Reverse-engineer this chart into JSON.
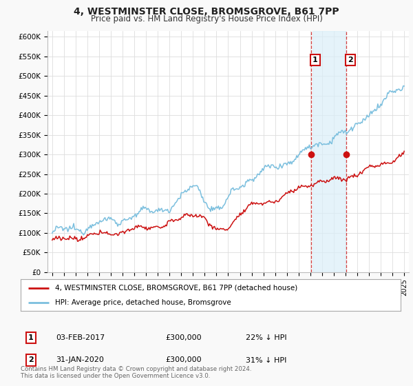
{
  "title": "4, WESTMINSTER CLOSE, BROMSGROVE, B61 7PP",
  "subtitle": "Price paid vs. HM Land Registry's House Price Index (HPI)",
  "ylabel_ticks": [
    "£0",
    "£50K",
    "£100K",
    "£150K",
    "£200K",
    "£250K",
    "£300K",
    "£350K",
    "£400K",
    "£450K",
    "£500K",
    "£550K",
    "£600K"
  ],
  "ytick_values": [
    0,
    50000,
    100000,
    150000,
    200000,
    250000,
    300000,
    350000,
    400000,
    450000,
    500000,
    550000,
    600000
  ],
  "ylim": [
    0,
    615000
  ],
  "xlim_start": 1994.6,
  "xlim_end": 2025.4,
  "hpi_color": "#7bbfde",
  "price_color": "#cc1111",
  "shade_color": "#daeef8",
  "transaction1_x": 2017.09,
  "transaction1_y": 300000,
  "transaction2_x": 2020.08,
  "transaction2_y": 300000,
  "legend_property": "4, WESTMINSTER CLOSE, BROMSGROVE, B61 7PP (detached house)",
  "legend_hpi": "HPI: Average price, detached house, Bromsgrove",
  "footer": "Contains HM Land Registry data © Crown copyright and database right 2024.\nThis data is licensed under the Open Government Licence v3.0.",
  "background_color": "#f9f9f9",
  "plot_bg_color": "#ffffff",
  "grid_color": "#dddddd",
  "t1_date": "03-FEB-2017",
  "t1_price": "£300,000",
  "t1_pct": "22% ↓ HPI",
  "t2_date": "31-JAN-2020",
  "t2_price": "£300,000",
  "t2_pct": "31% ↓ HPI"
}
